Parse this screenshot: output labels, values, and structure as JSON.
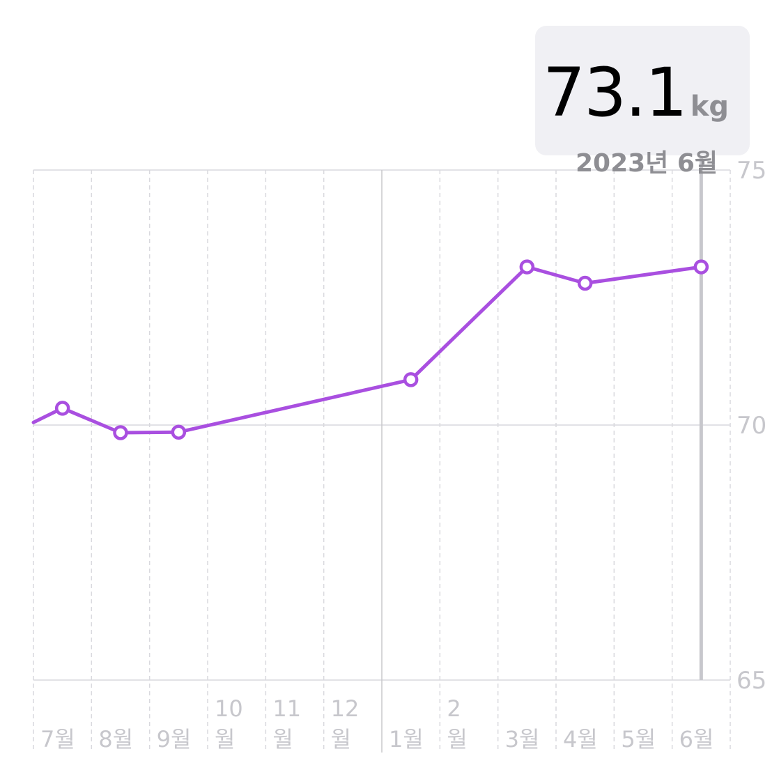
{
  "tooltip": {
    "value": "73.1",
    "unit": "kg",
    "date": "2023년 6월"
  },
  "colors": {
    "line": "#a94fe0",
    "grid": "#d9d9de",
    "label": "#c7c7cc",
    "selection": "#c7c7cc"
  },
  "chart_data": {
    "type": "line",
    "x_labels": [
      {
        "lines": [
          "7월"
        ]
      },
      {
        "lines": [
          "8월"
        ]
      },
      {
        "lines": [
          "9월"
        ]
      },
      {
        "lines": [
          "10",
          "월"
        ]
      },
      {
        "lines": [
          "11",
          "월"
        ]
      },
      {
        "lines": [
          "12",
          "월"
        ]
      },
      {
        "lines": [
          "1월"
        ]
      },
      {
        "lines": [
          "2",
          "월"
        ]
      },
      {
        "lines": [
          "3월"
        ]
      },
      {
        "lines": [
          "4월"
        ]
      },
      {
        "lines": [
          "5월"
        ]
      },
      {
        "lines": [
          "6월"
        ]
      }
    ],
    "y_ticks": [
      75,
      70,
      65
    ],
    "ylim": [
      65,
      75
    ],
    "xlim": [
      0,
      12
    ],
    "points": [
      {
        "x": 0.5,
        "y": 70.33
      },
      {
        "x": 1.5,
        "y": 69.85
      },
      {
        "x": 2.5,
        "y": 69.86
      },
      {
        "x": 6.5,
        "y": 70.89
      },
      {
        "x": 8.5,
        "y": 73.1
      },
      {
        "x": 9.5,
        "y": 72.78
      },
      {
        "x": 11.5,
        "y": 73.1
      }
    ],
    "series_start": {
      "x": 0.0,
      "y": 70.05
    },
    "selected_index": 6,
    "grid": true
  }
}
